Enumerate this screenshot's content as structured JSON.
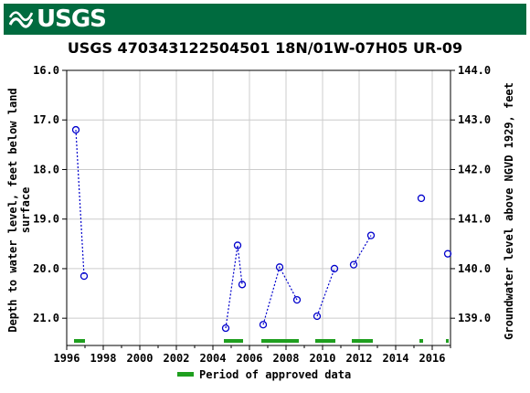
{
  "header": {
    "agency": "USGS",
    "brand_color": "#006b3f"
  },
  "chart_data": {
    "type": "scatter",
    "title": "USGS 470343122504501 18N/01W-07H05 UR-09",
    "xlabel": "",
    "ylabel_left": "Depth to water level, feet below land surface",
    "ylabel_right": "Groundwater level above NGVD 1929, feet",
    "xlim": [
      1996,
      2017
    ],
    "ylim_left": [
      16.0,
      21.55
    ],
    "ylim_right": [
      144.0,
      138.45
    ],
    "left_axis_inverted": true,
    "grid": true,
    "x_ticks": [
      "1996",
      "1998",
      "2000",
      "2002",
      "2004",
      "2006",
      "2008",
      "2010",
      "2012",
      "2014",
      "2016"
    ],
    "y_ticks_left": [
      "16.0",
      "17.0",
      "18.0",
      "19.0",
      "20.0",
      "21.0"
    ],
    "y_ticks_right": [
      "144.0",
      "143.0",
      "142.0",
      "141.0",
      "140.0",
      "139.0"
    ],
    "series": [
      {
        "name": "",
        "color": "#0000cc",
        "marker": "circle",
        "segments": [
          [
            [
              1996.5,
              17.2
            ],
            [
              1996.95,
              20.15
            ]
          ],
          [
            [
              2004.7,
              21.2
            ],
            [
              2005.35,
              19.53
            ],
            [
              2005.6,
              20.32
            ]
          ],
          [
            [
              2006.75,
              21.13
            ],
            [
              2007.65,
              19.97
            ],
            [
              2008.6,
              20.63
            ]
          ],
          [
            [
              2009.7,
              20.96
            ],
            [
              2010.65,
              20.0
            ]
          ],
          [
            [
              2011.7,
              19.92
            ],
            [
              2012.65,
              19.33
            ]
          ]
        ],
        "isolated_points": [
          [
            2015.4,
            18.58
          ],
          [
            2016.85,
            19.7
          ]
        ]
      }
    ],
    "approved_periods": [
      [
        1996.4,
        1997.0
      ],
      [
        2004.6,
        2005.65
      ],
      [
        2006.65,
        2008.7
      ],
      [
        2009.6,
        2010.7
      ],
      [
        2011.6,
        2012.75
      ],
      [
        2015.3,
        2015.5
      ],
      [
        2016.75,
        2016.9
      ]
    ],
    "approved_color": "#1f9f1f",
    "legend": {
      "label": "Period of approved data",
      "placement": "bottom"
    }
  }
}
